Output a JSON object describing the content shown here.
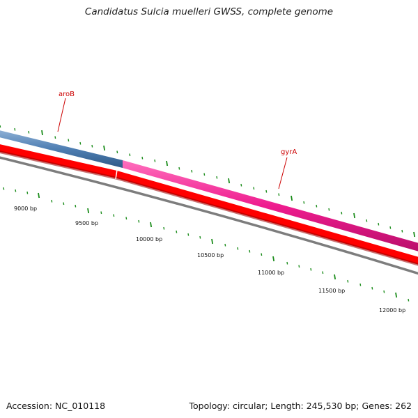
{
  "title": "Candidatus Sulcia muelleri GWSS, complete genome",
  "footer": {
    "accession": "Accession: NC_010118",
    "summary": "Topology: circular; Length: 245,530 bp; Genes: 262"
  },
  "genes": [
    {
      "name": "aroB",
      "strand": "+",
      "color": "#4f7fb3"
    },
    {
      "name": "gyrA",
      "strand": "+",
      "color": "#ee1c8e"
    }
  ],
  "scale": {
    "labels": [
      "9000 bp",
      "9500 bp",
      "10000 bp",
      "10500 bp",
      "11000 bp",
      "11500 bp",
      "12000 bp"
    ]
  },
  "colors": {
    "forward_cds_aroB": "#4f7fb3",
    "forward_cds_gyrA": "#ee1c8e",
    "reverse_cds": "#ff0000",
    "backbone": "#808080",
    "ticks": "#1a8c1a",
    "gene_label": "#cc0000"
  }
}
